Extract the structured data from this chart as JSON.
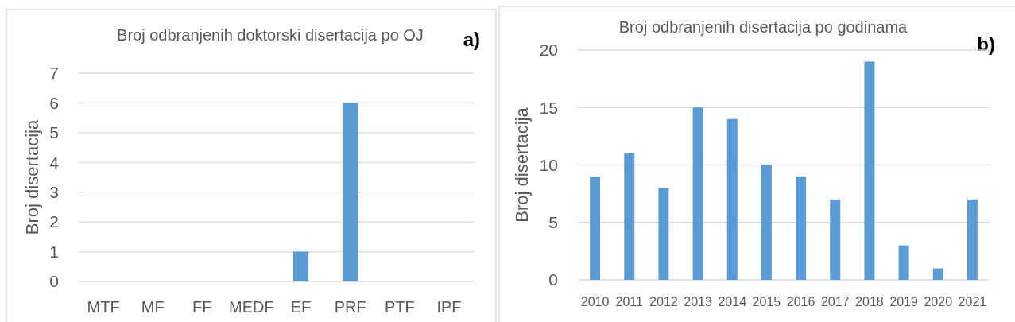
{
  "chart_data": [
    {
      "type": "bar",
      "title": "Broj odbranjenih doktorski disertacija po OJ",
      "ylabel": "Broj disertacija",
      "annotations": [
        "a)"
      ],
      "categories": [
        "MTF",
        "MF",
        "FF",
        "MEDF",
        "EF",
        "PRF",
        "PTF",
        "IPF"
      ],
      "values": [
        0,
        0,
        0,
        0,
        1,
        6,
        0,
        0
      ],
      "color": "#5b9bd5",
      "ylim": [
        0,
        7
      ],
      "yticks": [
        0,
        1,
        2,
        3,
        4,
        5,
        6,
        7
      ],
      "grid": "y"
    },
    {
      "type": "bar",
      "title": "Broj odbranjenih disertacija po godinama",
      "ylabel": "Broj disertacija",
      "annotations": [
        "b)"
      ],
      "categories": [
        "2010",
        "2011",
        "2012",
        "2013",
        "2014",
        "2015",
        "2016",
        "2017",
        "2018",
        "2019",
        "2020",
        "2021"
      ],
      "values": [
        9,
        11,
        8,
        15,
        14,
        10,
        9,
        7,
        19,
        3,
        1,
        7
      ],
      "color": "#5b9bd5",
      "ylim": [
        0,
        20
      ],
      "yticks": [
        0,
        5,
        10,
        15,
        20
      ],
      "grid": "y"
    }
  ]
}
